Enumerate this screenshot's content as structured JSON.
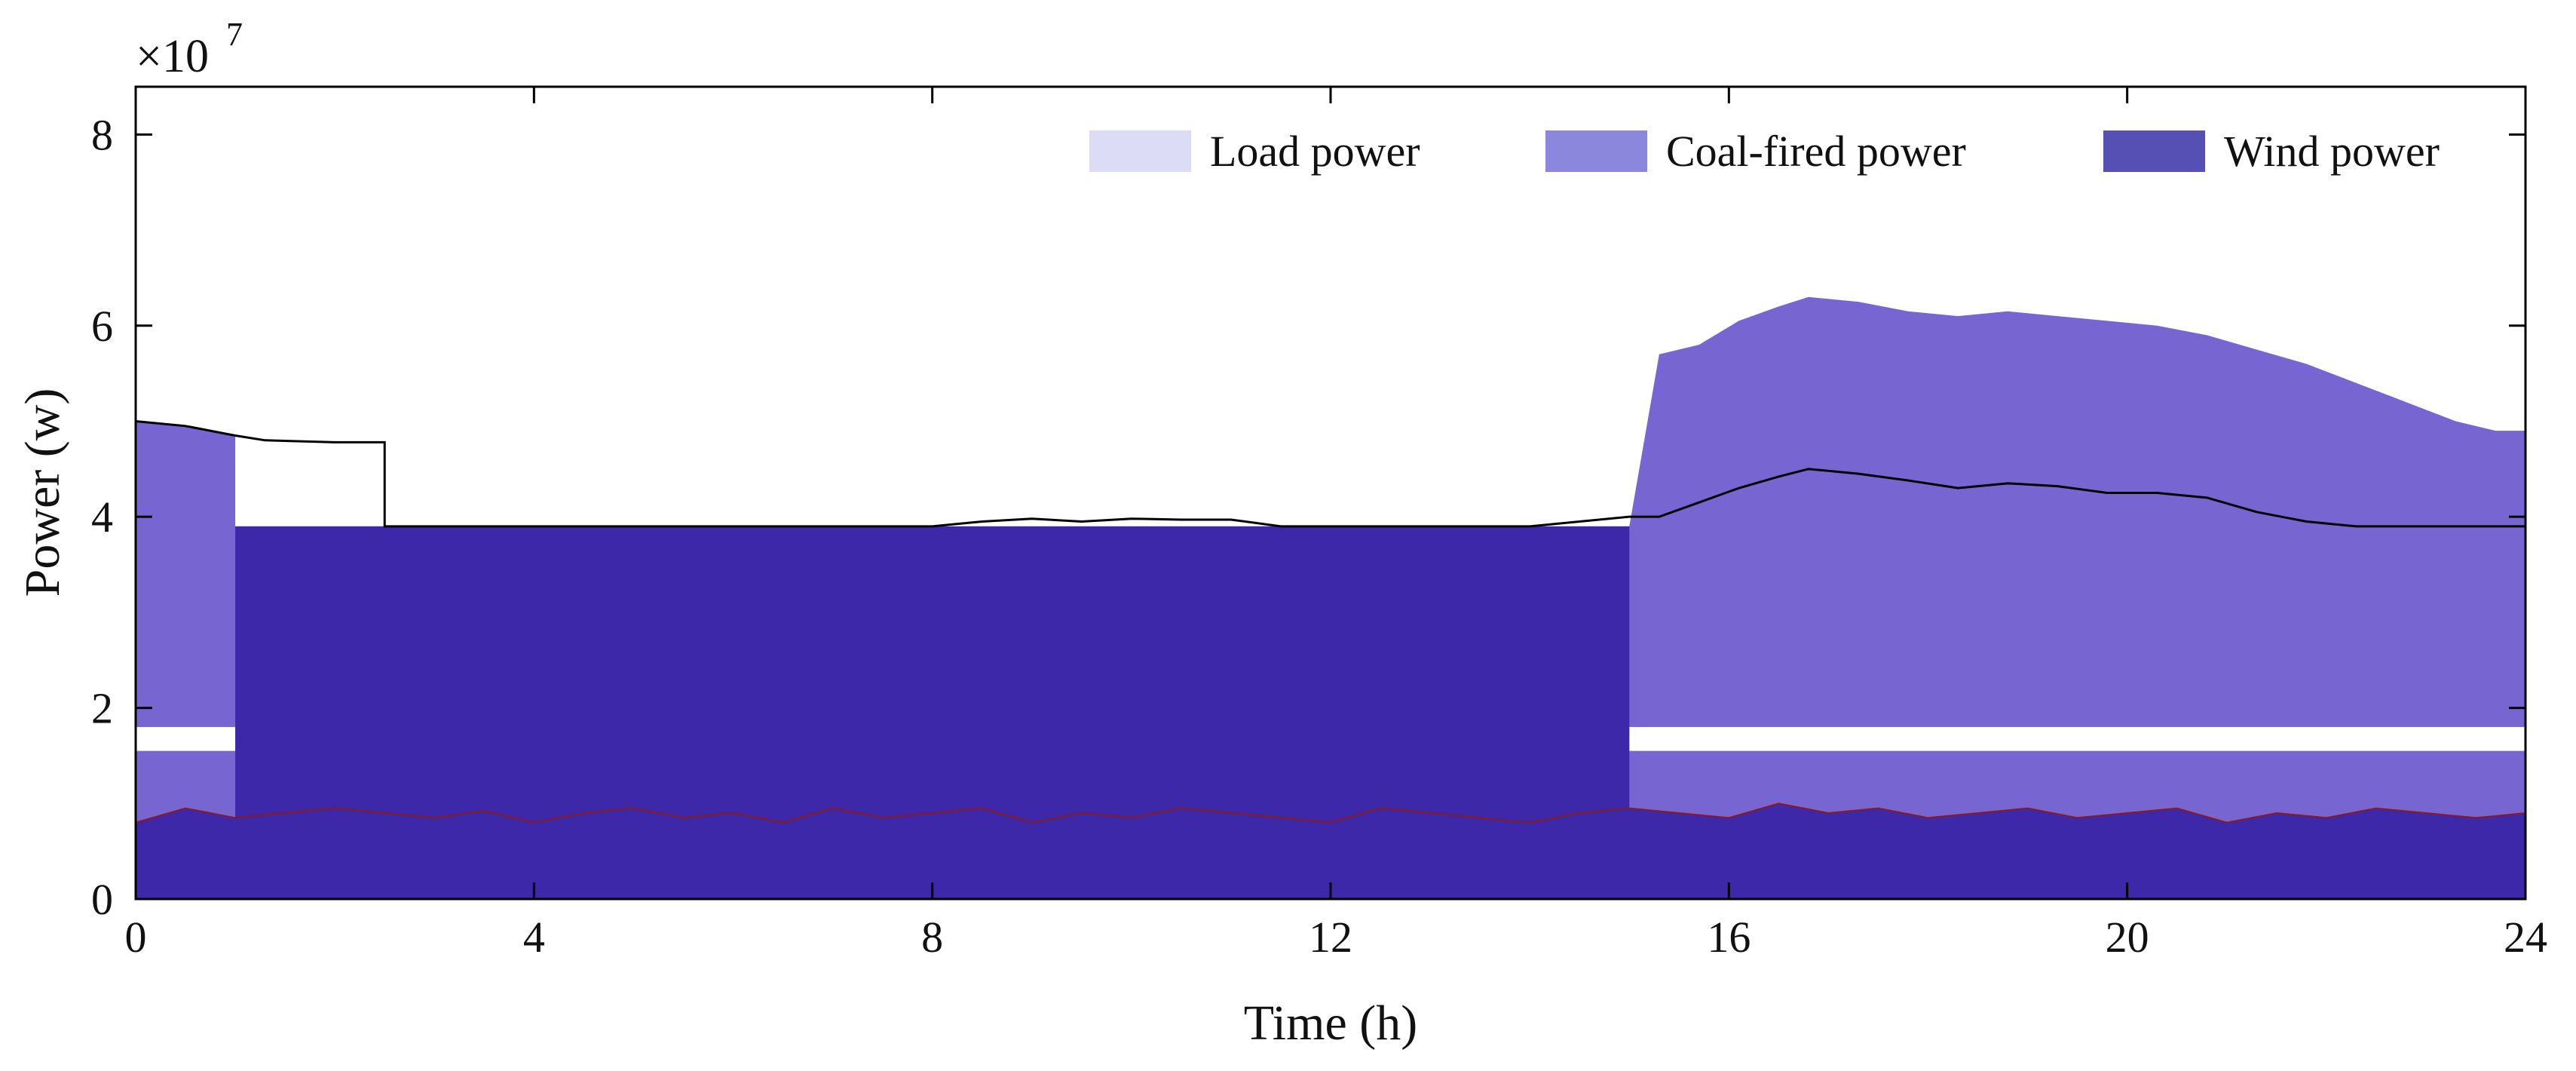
{
  "chart_data": {
    "type": "area",
    "title": "",
    "xlabel": "Time (h)",
    "ylabel": "Power (w)",
    "y_exponent_label": "×10",
    "y_exponent_power": "7",
    "xlim": [
      0,
      24
    ],
    "ylim": [
      0,
      8.5
    ],
    "xticks": [
      0,
      4,
      8,
      12,
      16,
      20,
      24
    ],
    "yticks": [
      0,
      2,
      4,
      6,
      8
    ],
    "xtick_labels": [
      "0",
      "4",
      "8",
      "12",
      "16",
      "20",
      "24"
    ],
    "ytick_labels": [
      "0",
      "2",
      "4",
      "6",
      "8"
    ],
    "grid": false,
    "legend_position": "top-right",
    "legend": [
      {
        "label": "Load power",
        "color": "#dcdcf7"
      },
      {
        "label": "Coal-fired power",
        "color": "#8b87dc"
      },
      {
        "label": "Wind power",
        "color": "#5650b4"
      }
    ],
    "colors": {
      "wind_fill": "#3c28a8",
      "coal_fill": "#7766d2",
      "load_gap": "#ffffff",
      "load_line": "#000000",
      "wind_line": "#8b1a1a"
    },
    "series": [
      {
        "name": "Coal-fired power (total stack top)",
        "x": [
          0,
          0.5,
          1,
          1,
          15,
          15.3,
          15.7,
          16.1,
          16.5,
          16.8,
          17.3,
          17.8,
          18.3,
          18.8,
          19.3,
          19.8,
          20.3,
          20.8,
          21.3,
          21.8,
          22.3,
          22.8,
          23.3,
          23.7,
          24
        ],
        "values": [
          5.0,
          4.95,
          4.85,
          3.9,
          3.9,
          5.7,
          5.8,
          6.05,
          6.2,
          6.3,
          6.25,
          6.15,
          6.1,
          6.15,
          6.1,
          6.05,
          6.0,
          5.9,
          5.75,
          5.6,
          5.4,
          5.2,
          5.0,
          4.9,
          4.9
        ]
      },
      {
        "name": "Load power",
        "x": [
          0,
          0.5,
          1,
          1.3,
          2,
          2.5,
          2.5,
          4,
          8,
          8.5,
          9,
          9.5,
          10,
          10.5,
          11,
          11.5,
          12,
          13,
          14,
          14.5,
          15,
          15.3,
          15.7,
          16.1,
          16.5,
          16.8,
          17.3,
          17.8,
          18.3,
          18.8,
          19.3,
          19.8,
          20.3,
          20.8,
          21.3,
          21.8,
          22.3,
          23,
          24
        ],
        "values": [
          5.0,
          4.95,
          4.85,
          4.8,
          4.78,
          4.78,
          3.9,
          3.9,
          3.9,
          3.95,
          3.98,
          3.95,
          3.98,
          3.97,
          3.97,
          3.9,
          3.9,
          3.9,
          3.9,
          3.95,
          4.0,
          4.0,
          4.15,
          4.3,
          4.42,
          4.5,
          4.45,
          4.38,
          4.3,
          4.35,
          4.32,
          4.25,
          4.25,
          4.2,
          4.05,
          3.95,
          3.9,
          3.9,
          3.9
        ]
      },
      {
        "name": "Wind power",
        "x": [
          0,
          0.5,
          1,
          1.5,
          2,
          2.5,
          3,
          3.5,
          4,
          4.5,
          5,
          5.5,
          6,
          6.5,
          7,
          7.5,
          8,
          8.5,
          9,
          9.5,
          10,
          10.5,
          11,
          11.5,
          12,
          12.5,
          13,
          13.5,
          14,
          14.5,
          15,
          15.5,
          16,
          16.5,
          17,
          17.5,
          18,
          18.5,
          19,
          19.5,
          20,
          20.5,
          21,
          21.5,
          22,
          22.5,
          23,
          23.5,
          24
        ],
        "values": [
          0.8,
          0.95,
          0.85,
          0.9,
          0.95,
          0.9,
          0.85,
          0.92,
          0.8,
          0.9,
          0.95,
          0.85,
          0.9,
          0.8,
          0.95,
          0.85,
          0.9,
          0.95,
          0.8,
          0.9,
          0.85,
          0.95,
          0.9,
          0.85,
          0.8,
          0.95,
          0.9,
          0.85,
          0.8,
          0.9,
          0.95,
          0.9,
          0.85,
          1.0,
          0.9,
          0.95,
          0.85,
          0.9,
          0.95,
          0.85,
          0.9,
          0.95,
          0.8,
          0.9,
          0.85,
          0.95,
          0.9,
          0.85,
          0.9
        ]
      }
    ],
    "white_bands": [
      {
        "x": [
          0,
          1
        ],
        "y": [
          1.55,
          1.8
        ]
      },
      {
        "x": [
          15,
          24
        ],
        "y": [
          1.55,
          1.8
        ]
      }
    ]
  }
}
